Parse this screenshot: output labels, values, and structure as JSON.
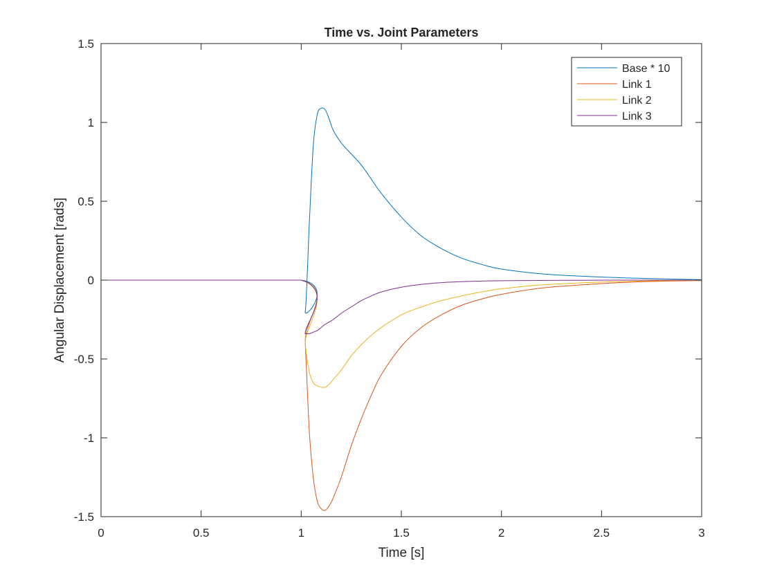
{
  "chart_data": {
    "type": "line",
    "title": "Time vs. Joint Parameters",
    "xlabel": "Time [s]",
    "ylabel": "Angular Displacement [rads]",
    "xlim": [
      0,
      3
    ],
    "ylim": [
      -1.5,
      1.5
    ],
    "xticks": [
      0,
      0.5,
      1,
      1.5,
      2,
      2.5,
      3
    ],
    "xtick_labels": [
      "0",
      "0.5",
      "1",
      "1.5",
      "2",
      "2.5",
      "3"
    ],
    "yticks": [
      -1.5,
      -1,
      -0.5,
      0,
      0.5,
      1,
      1.5
    ],
    "ytick_labels": [
      "-1.5",
      "-1",
      "-0.5",
      "0",
      "0.5",
      "1",
      "1.5"
    ],
    "grid": false,
    "legend_position": "top-right",
    "series": [
      {
        "name": "Base * 10",
        "color": "#0072BD",
        "x": [
          0,
          1.0,
          1.02,
          1.04,
          1.06,
          1.08,
          1.1,
          1.12,
          1.14,
          1.16,
          1.2,
          1.25,
          1.3,
          1.35,
          1.4,
          1.5,
          1.6,
          1.7,
          1.8,
          1.9,
          2.0,
          2.2,
          2.4,
          2.6,
          2.8,
          3.0
        ],
        "y": [
          0,
          0,
          -0.2,
          0.35,
          0.85,
          1.05,
          1.09,
          1.08,
          1.02,
          0.95,
          0.87,
          0.8,
          0.73,
          0.64,
          0.55,
          0.4,
          0.28,
          0.2,
          0.14,
          0.1,
          0.07,
          0.04,
          0.025,
          0.015,
          0.008,
          0.003
        ]
      },
      {
        "name": "Link 1",
        "color": "#D95319",
        "x": [
          0,
          1.0,
          1.02,
          1.04,
          1.06,
          1.08,
          1.1,
          1.12,
          1.14,
          1.16,
          1.2,
          1.25,
          1.3,
          1.35,
          1.4,
          1.5,
          1.6,
          1.7,
          1.8,
          1.9,
          2.0,
          2.2,
          2.4,
          2.6,
          2.8,
          3.0
        ],
        "y": [
          0,
          0,
          -0.4,
          -0.95,
          -1.25,
          -1.4,
          -1.45,
          -1.46,
          -1.43,
          -1.38,
          -1.25,
          -1.05,
          -0.88,
          -0.73,
          -0.6,
          -0.42,
          -0.3,
          -0.22,
          -0.16,
          -0.12,
          -0.09,
          -0.05,
          -0.03,
          -0.015,
          -0.007,
          -0.003
        ]
      },
      {
        "name": "Link 2",
        "color": "#EDB120",
        "x": [
          0,
          1.0,
          1.02,
          1.04,
          1.06,
          1.08,
          1.1,
          1.12,
          1.14,
          1.16,
          1.2,
          1.25,
          1.3,
          1.35,
          1.4,
          1.5,
          1.6,
          1.7,
          1.8,
          1.9,
          2.0,
          2.2,
          2.4,
          2.6,
          2.8,
          3.0
        ],
        "y": [
          0,
          0,
          -0.4,
          -0.58,
          -0.65,
          -0.67,
          -0.68,
          -0.68,
          -0.66,
          -0.63,
          -0.57,
          -0.48,
          -0.41,
          -0.35,
          -0.3,
          -0.22,
          -0.17,
          -0.13,
          -0.1,
          -0.075,
          -0.055,
          -0.03,
          -0.017,
          -0.009,
          -0.004,
          -0.002
        ]
      },
      {
        "name": "Link 3",
        "color": "#7E2F8E",
        "x": [
          0,
          1.0,
          1.02,
          1.04,
          1.06,
          1.08,
          1.1,
          1.12,
          1.16,
          1.2,
          1.25,
          1.3,
          1.35,
          1.4,
          1.5,
          1.6,
          1.7,
          1.8,
          1.9,
          2.0,
          2.2,
          2.4,
          2.6,
          2.8,
          3.0
        ],
        "y": [
          0,
          0,
          -0.34,
          -0.34,
          -0.33,
          -0.32,
          -0.3,
          -0.28,
          -0.25,
          -0.21,
          -0.17,
          -0.13,
          -0.1,
          -0.075,
          -0.045,
          -0.027,
          -0.016,
          -0.01,
          -0.006,
          -0.004,
          -0.002,
          -0.001,
          0,
          0,
          0
        ]
      }
    ]
  }
}
